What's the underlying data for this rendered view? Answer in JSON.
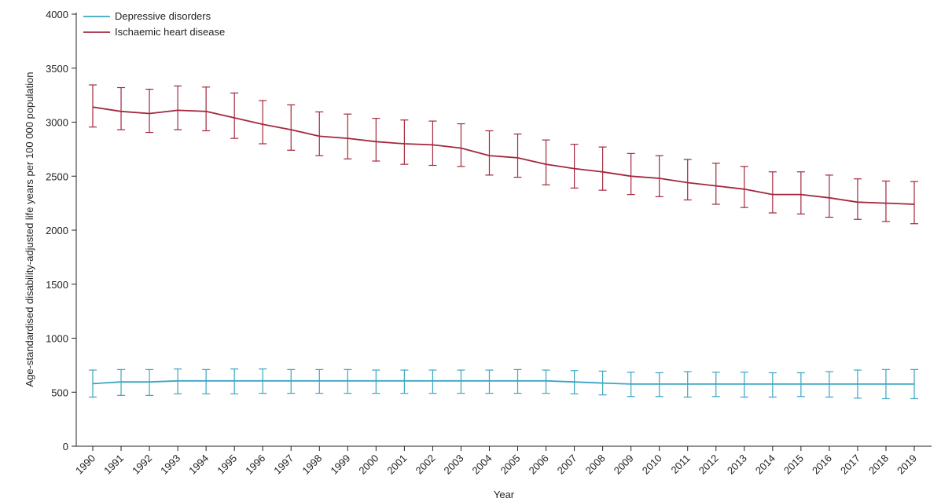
{
  "chart_data": {
    "type": "line",
    "title": "",
    "xlabel": "Year",
    "ylabel": "Age-standardised disability-adjusted life years per 100 000 population",
    "ylim": [
      0,
      4000
    ],
    "yticks": [
      "0",
      "500",
      "1000",
      "1500",
      "2000",
      "2500",
      "3000",
      "3500",
      "4000"
    ],
    "x": [
      "1990",
      "1991",
      "1992",
      "1993",
      "1994",
      "1995",
      "1996",
      "1997",
      "1998",
      "1999",
      "2000",
      "2001",
      "2002",
      "2003",
      "2004",
      "2005",
      "2006",
      "2007",
      "2008",
      "2009",
      "2010",
      "2011",
      "2012",
      "2013",
      "2014",
      "2015",
      "2016",
      "2017",
      "2018",
      "2019"
    ],
    "grid": false,
    "legend_position": "top-left",
    "series": [
      {
        "name": "Depressive disorders",
        "color": "#3aa6c2",
        "values": [
          580,
          595,
          595,
          605,
          605,
          605,
          605,
          605,
          605,
          605,
          605,
          605,
          605,
          605,
          605,
          605,
          605,
          595,
          585,
          575,
          575,
          575,
          575,
          575,
          575,
          575,
          575,
          575,
          575,
          575
        ],
        "lower": [
          455,
          470,
          470,
          485,
          485,
          485,
          490,
          490,
          490,
          490,
          490,
          490,
          490,
          490,
          490,
          490,
          490,
          485,
          475,
          460,
          460,
          455,
          460,
          455,
          455,
          460,
          455,
          445,
          440,
          440
        ],
        "upper": [
          705,
          710,
          710,
          715,
          710,
          715,
          715,
          710,
          710,
          710,
          705,
          705,
          705,
          705,
          705,
          710,
          705,
          700,
          695,
          685,
          680,
          690,
          685,
          685,
          680,
          680,
          690,
          705,
          710,
          710
        ]
      },
      {
        "name": "Ischaemic heart disease",
        "color": "#a3283d",
        "values": [
          3140,
          3100,
          3080,
          3110,
          3100,
          3040,
          2980,
          2930,
          2870,
          2850,
          2820,
          2800,
          2790,
          2760,
          2690,
          2670,
          2610,
          2570,
          2540,
          2500,
          2480,
          2440,
          2410,
          2380,
          2330,
          2330,
          2300,
          2260,
          2250,
          2240
        ],
        "lower": [
          2955,
          2930,
          2905,
          2930,
          2920,
          2850,
          2800,
          2740,
          2690,
          2660,
          2640,
          2610,
          2600,
          2590,
          2510,
          2490,
          2420,
          2390,
          2370,
          2330,
          2310,
          2280,
          2240,
          2210,
          2160,
          2150,
          2120,
          2100,
          2080,
          2060
        ],
        "upper": [
          3345,
          3320,
          3305,
          3335,
          3325,
          3270,
          3200,
          3160,
          3095,
          3075,
          3035,
          3020,
          3010,
          2985,
          2920,
          2890,
          2835,
          2795,
          2770,
          2710,
          2690,
          2655,
          2620,
          2590,
          2540,
          2540,
          2510,
          2475,
          2455,
          2450
        ]
      }
    ]
  }
}
